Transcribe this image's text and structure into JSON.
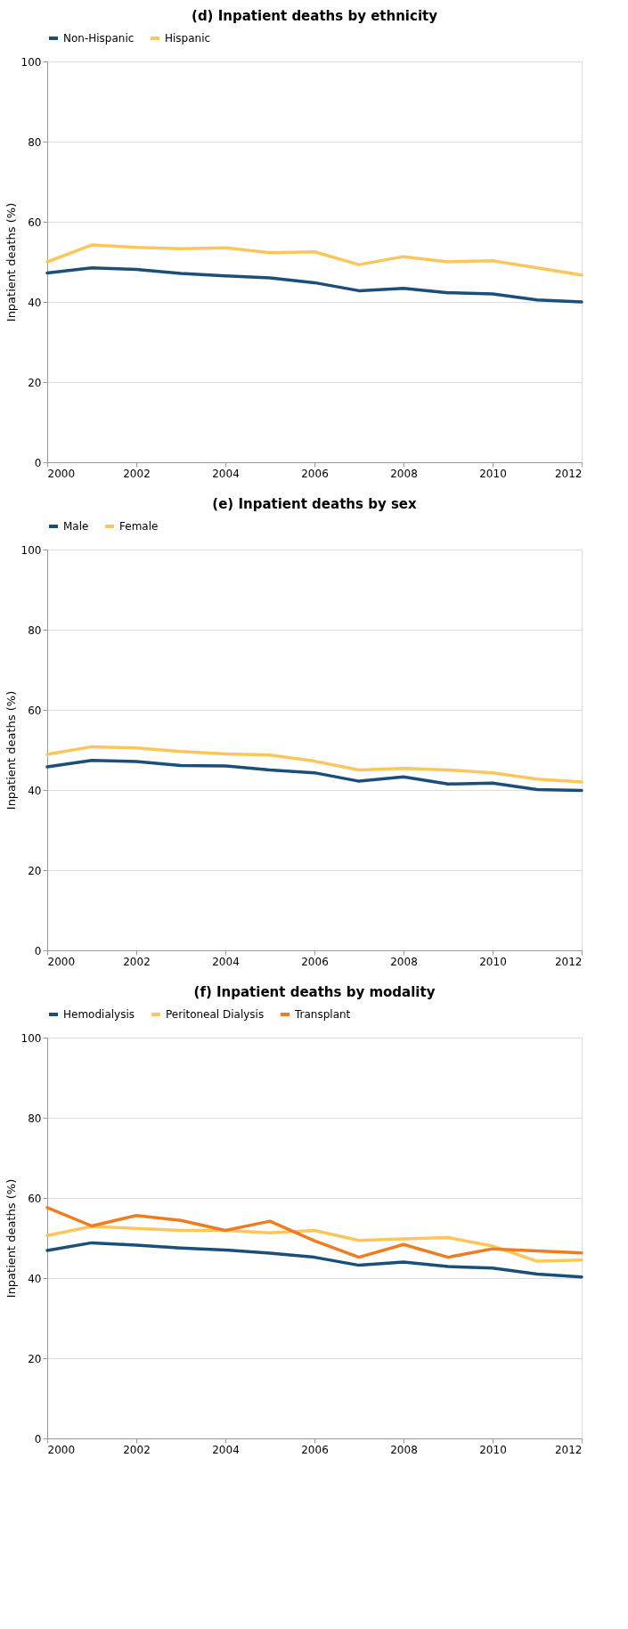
{
  "chart_data": [
    {
      "type": "line",
      "title": "(d) Inpatient deaths by ethnicity",
      "ylabel": "Inpatient deaths (%)",
      "x": [
        2000,
        2001,
        2002,
        2003,
        2004,
        2005,
        2006,
        2007,
        2008,
        2009,
        2010,
        2011,
        2012
      ],
      "xlim": [
        2000,
        2012
      ],
      "xticks": [
        2000,
        2002,
        2004,
        2006,
        2008,
        2010,
        2012
      ],
      "ylim": [
        0,
        100
      ],
      "yticks": [
        0,
        20,
        40,
        60,
        80,
        100
      ],
      "grid": "y",
      "legend": "top",
      "line_style": "solid",
      "series": [
        {
          "name": "Non-Hispanic",
          "color": "#1b4f7a",
          "values": [
            47.2,
            48.5,
            48.1,
            47.1,
            46.5,
            46.0,
            44.8,
            42.8,
            43.4,
            42.3,
            42.0,
            40.5,
            40.0
          ]
        },
        {
          "name": "Hispanic",
          "color": "#fdc65c",
          "values": [
            50.0,
            54.2,
            53.6,
            53.3,
            53.5,
            52.3,
            52.5,
            49.3,
            51.3,
            50.0,
            50.3,
            48.5,
            46.7
          ]
        }
      ]
    },
    {
      "type": "line",
      "title": "(e) Inpatient deaths by sex",
      "ylabel": "Inpatient deaths (%)",
      "x": [
        2000,
        2001,
        2002,
        2003,
        2004,
        2005,
        2006,
        2007,
        2008,
        2009,
        2010,
        2011,
        2012
      ],
      "xlim": [
        2000,
        2012
      ],
      "xticks": [
        2000,
        2002,
        2004,
        2006,
        2008,
        2010,
        2012
      ],
      "ylim": [
        0,
        100
      ],
      "yticks": [
        0,
        20,
        40,
        60,
        80,
        100
      ],
      "grid": "y",
      "legend": "top",
      "line_style": "solid",
      "series": [
        {
          "name": "Male",
          "color": "#1b4f7a",
          "values": [
            45.8,
            47.4,
            47.1,
            46.1,
            46.0,
            45.0,
            44.3,
            42.2,
            43.3,
            41.5,
            41.7,
            40.1,
            39.9
          ]
        },
        {
          "name": "Female",
          "color": "#fdc65c",
          "values": [
            48.9,
            50.8,
            50.5,
            49.6,
            49.0,
            48.7,
            47.2,
            45.0,
            45.4,
            45.0,
            44.3,
            42.7,
            42.0
          ]
        }
      ]
    },
    {
      "type": "line",
      "title": "(f) Inpatient deaths by modality",
      "ylabel": "Inpatient deaths (%)",
      "x": [
        2000,
        2001,
        2002,
        2003,
        2004,
        2005,
        2006,
        2007,
        2008,
        2009,
        2010,
        2011,
        2012
      ],
      "xlim": [
        2000,
        2012
      ],
      "xticks": [
        2000,
        2002,
        2004,
        2006,
        2008,
        2010,
        2012
      ],
      "ylim": [
        0,
        100
      ],
      "yticks": [
        0,
        20,
        40,
        60,
        80,
        100
      ],
      "grid": "y",
      "legend": "top",
      "line_style": "solid",
      "series": [
        {
          "name": "Hemodialysis",
          "color": "#1b4f7a",
          "values": [
            46.9,
            48.8,
            48.2,
            47.5,
            47.0,
            46.2,
            45.2,
            43.2,
            44.0,
            42.9,
            42.5,
            41.0,
            40.3
          ]
        },
        {
          "name": "Peritoneal Dialysis",
          "color": "#fdc65c",
          "values": [
            50.6,
            52.9,
            52.4,
            51.9,
            51.9,
            51.3,
            51.9,
            49.4,
            49.8,
            50.1,
            48.0,
            44.2,
            44.5
          ]
        },
        {
          "name": "Transplant",
          "color": "#ee7d22",
          "values": [
            57.6,
            53.0,
            55.6,
            54.4,
            51.9,
            54.2,
            49.3,
            45.2,
            48.4,
            45.2,
            47.3,
            46.8,
            46.3
          ]
        }
      ]
    }
  ]
}
